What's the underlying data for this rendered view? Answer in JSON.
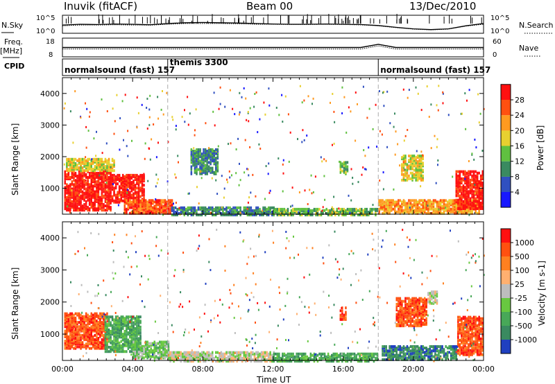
{
  "header": {
    "station": "Inuvik (fitACF)",
    "beam": "Beam 00",
    "date": "13/Dec/2010"
  },
  "chart_data": [
    {
      "type": "line",
      "panel": "noise",
      "left_label": "N.Sky",
      "right_label": "N.Search",
      "left_ticks": [
        "10^5",
        "10^0"
      ],
      "right_ticks": [
        "10^5",
        "10^0"
      ],
      "x_hours": [
        0,
        1,
        2,
        3,
        4,
        5,
        6,
        7,
        8,
        9,
        10,
        11,
        12,
        13,
        14,
        15,
        16,
        17,
        18,
        19,
        20,
        21,
        22,
        23,
        24
      ],
      "sky_level": [
        0.45,
        0.5,
        0.48,
        0.52,
        0.5,
        0.47,
        0.55,
        0.6,
        0.62,
        0.6,
        0.58,
        0.55,
        0.52,
        0.5,
        0.5,
        0.52,
        0.5,
        0.48,
        0.42,
        0.3,
        0.2,
        0.15,
        0.2,
        0.4,
        0.55
      ],
      "search_level": [
        0.4,
        0.45,
        0.45,
        0.47,
        0.45,
        0.44,
        0.5,
        0.55,
        0.55,
        0.55,
        0.53,
        0.5,
        0.5,
        0.48,
        0.48,
        0.5,
        0.48,
        0.46,
        0.4,
        0.28,
        0.18,
        0.13,
        0.18,
        0.38,
        0.5
      ]
    },
    {
      "type": "line",
      "panel": "frequency",
      "left_label": "Freq.",
      "left_unit": "[MHz]",
      "right_label": "Nave",
      "left_ticks": [
        "18",
        "8"
      ],
      "right_ticks": [
        "60",
        "0"
      ],
      "freq_level": [
        0.5,
        0.5,
        0.5,
        0.5,
        0.5,
        0.5,
        0.5,
        0.5,
        0.5,
        0.5,
        0.5,
        0.5,
        0.5,
        0.5,
        0.5,
        0.5,
        0.5,
        0.5,
        0.7,
        0.5,
        0.5,
        0.5,
        0.5,
        0.5,
        0.5
      ]
    },
    {
      "type": "table",
      "panel": "cpid",
      "label": "CPID",
      "segments": [
        {
          "start": 0,
          "end": 6,
          "name": "normalsound (fast) 157"
        },
        {
          "start": 6,
          "end": 18,
          "name": "themis 3300"
        },
        {
          "start": 18,
          "end": 24,
          "name": "normalsound (fast) 157"
        }
      ]
    },
    {
      "type": "heatmap",
      "panel": "power",
      "ylabel": "Slant Range [km]",
      "yticks": [
        1000,
        2000,
        3000,
        4000
      ],
      "ylim": [
        180,
        4500
      ],
      "colorbar_label": "Power [dB]",
      "colorbar_ticks": [
        "4",
        "8",
        "12",
        "16",
        "20",
        "24",
        "28"
      ],
      "colorbar_colors": [
        "#1818ff",
        "#3050c0",
        "#3a8a60",
        "#60c040",
        "#e8d030",
        "#ff9a20",
        "#ff5010",
        "#ff1010"
      ],
      "patches": [
        {
          "t0": 0.1,
          "t1": 2.8,
          "r0": 350,
          "r1": 1600,
          "level": 7
        },
        {
          "t0": 2.8,
          "t1": 4.6,
          "r0": 600,
          "r1": 1500,
          "level": 7
        },
        {
          "t0": 3.5,
          "t1": 6.2,
          "r0": 250,
          "r1": 700,
          "level": 6
        },
        {
          "t0": 0.2,
          "t1": 3.0,
          "r0": 1600,
          "r1": 2000,
          "level": 4
        },
        {
          "t0": 6.2,
          "t1": 12.0,
          "r0": 200,
          "r1": 450,
          "level": 2
        },
        {
          "t0": 12.0,
          "t1": 18.0,
          "r0": 200,
          "r1": 400,
          "level": 3
        },
        {
          "t0": 18.0,
          "t1": 23.8,
          "r0": 250,
          "r1": 700,
          "level": 5
        },
        {
          "t0": 22.4,
          "t1": 24.0,
          "r0": 400,
          "r1": 1600,
          "level": 7
        },
        {
          "t0": 19.3,
          "t1": 20.6,
          "r0": 1300,
          "r1": 2100,
          "level": 4
        },
        {
          "t0": 7.3,
          "t1": 8.8,
          "r0": 1500,
          "r1": 2300,
          "level": 2
        },
        {
          "t0": 15.8,
          "t1": 16.3,
          "r0": 1500,
          "r1": 1900,
          "level": 3
        }
      ],
      "markers_hours": [
        6,
        18
      ]
    },
    {
      "type": "heatmap",
      "panel": "velocity",
      "ylabel": "Slant Range [km]",
      "yticks": [
        1000,
        2000,
        3000,
        4000
      ],
      "ylim": [
        180,
        4500
      ],
      "xlabel": "Time UT",
      "xticks": [
        "00:00",
        "04:00",
        "08:00",
        "12:00",
        "16:00",
        "20:00",
        "00:00"
      ],
      "colorbar_label": "Velocity [m s-1]",
      "colorbar_ticks": [
        "1000",
        "500",
        "100",
        "25",
        "-25",
        "-100",
        "-500",
        "-1000"
      ],
      "colorbar_colors": [
        "#2040c0",
        "#3a8a60",
        "#48a858",
        "#68c840",
        "#bdbdbd",
        "#ffb070",
        "#ff8020",
        "#ff5010",
        "#ff1010"
      ],
      "patches": [
        {
          "t0": 0.1,
          "t1": 2.6,
          "r0": 600,
          "r1": 1700,
          "level": 7
        },
        {
          "t0": 2.4,
          "t1": 4.4,
          "r0": 500,
          "r1": 1600,
          "level": 2
        },
        {
          "t0": 4.0,
          "t1": 6.0,
          "r0": 300,
          "r1": 800,
          "level": 3
        },
        {
          "t0": 6.0,
          "t1": 12.0,
          "r0": 200,
          "r1": 500,
          "level": 4
        },
        {
          "t0": 12.0,
          "t1": 18.0,
          "r0": 200,
          "r1": 450,
          "level": 2
        },
        {
          "t0": 18.2,
          "t1": 22.5,
          "r0": 250,
          "r1": 700,
          "level": 1
        },
        {
          "t0": 22.5,
          "t1": 24.0,
          "r0": 400,
          "r1": 1600,
          "level": 7
        },
        {
          "t0": 19.0,
          "t1": 20.8,
          "r0": 1300,
          "r1": 2200,
          "level": 7
        },
        {
          "t0": 15.8,
          "t1": 16.2,
          "r0": 1500,
          "r1": 1900,
          "level": 7
        },
        {
          "t0": 20.8,
          "t1": 21.4,
          "r0": 2000,
          "r1": 2400,
          "level": 4
        }
      ],
      "markers_hours": [
        6,
        18
      ]
    }
  ]
}
